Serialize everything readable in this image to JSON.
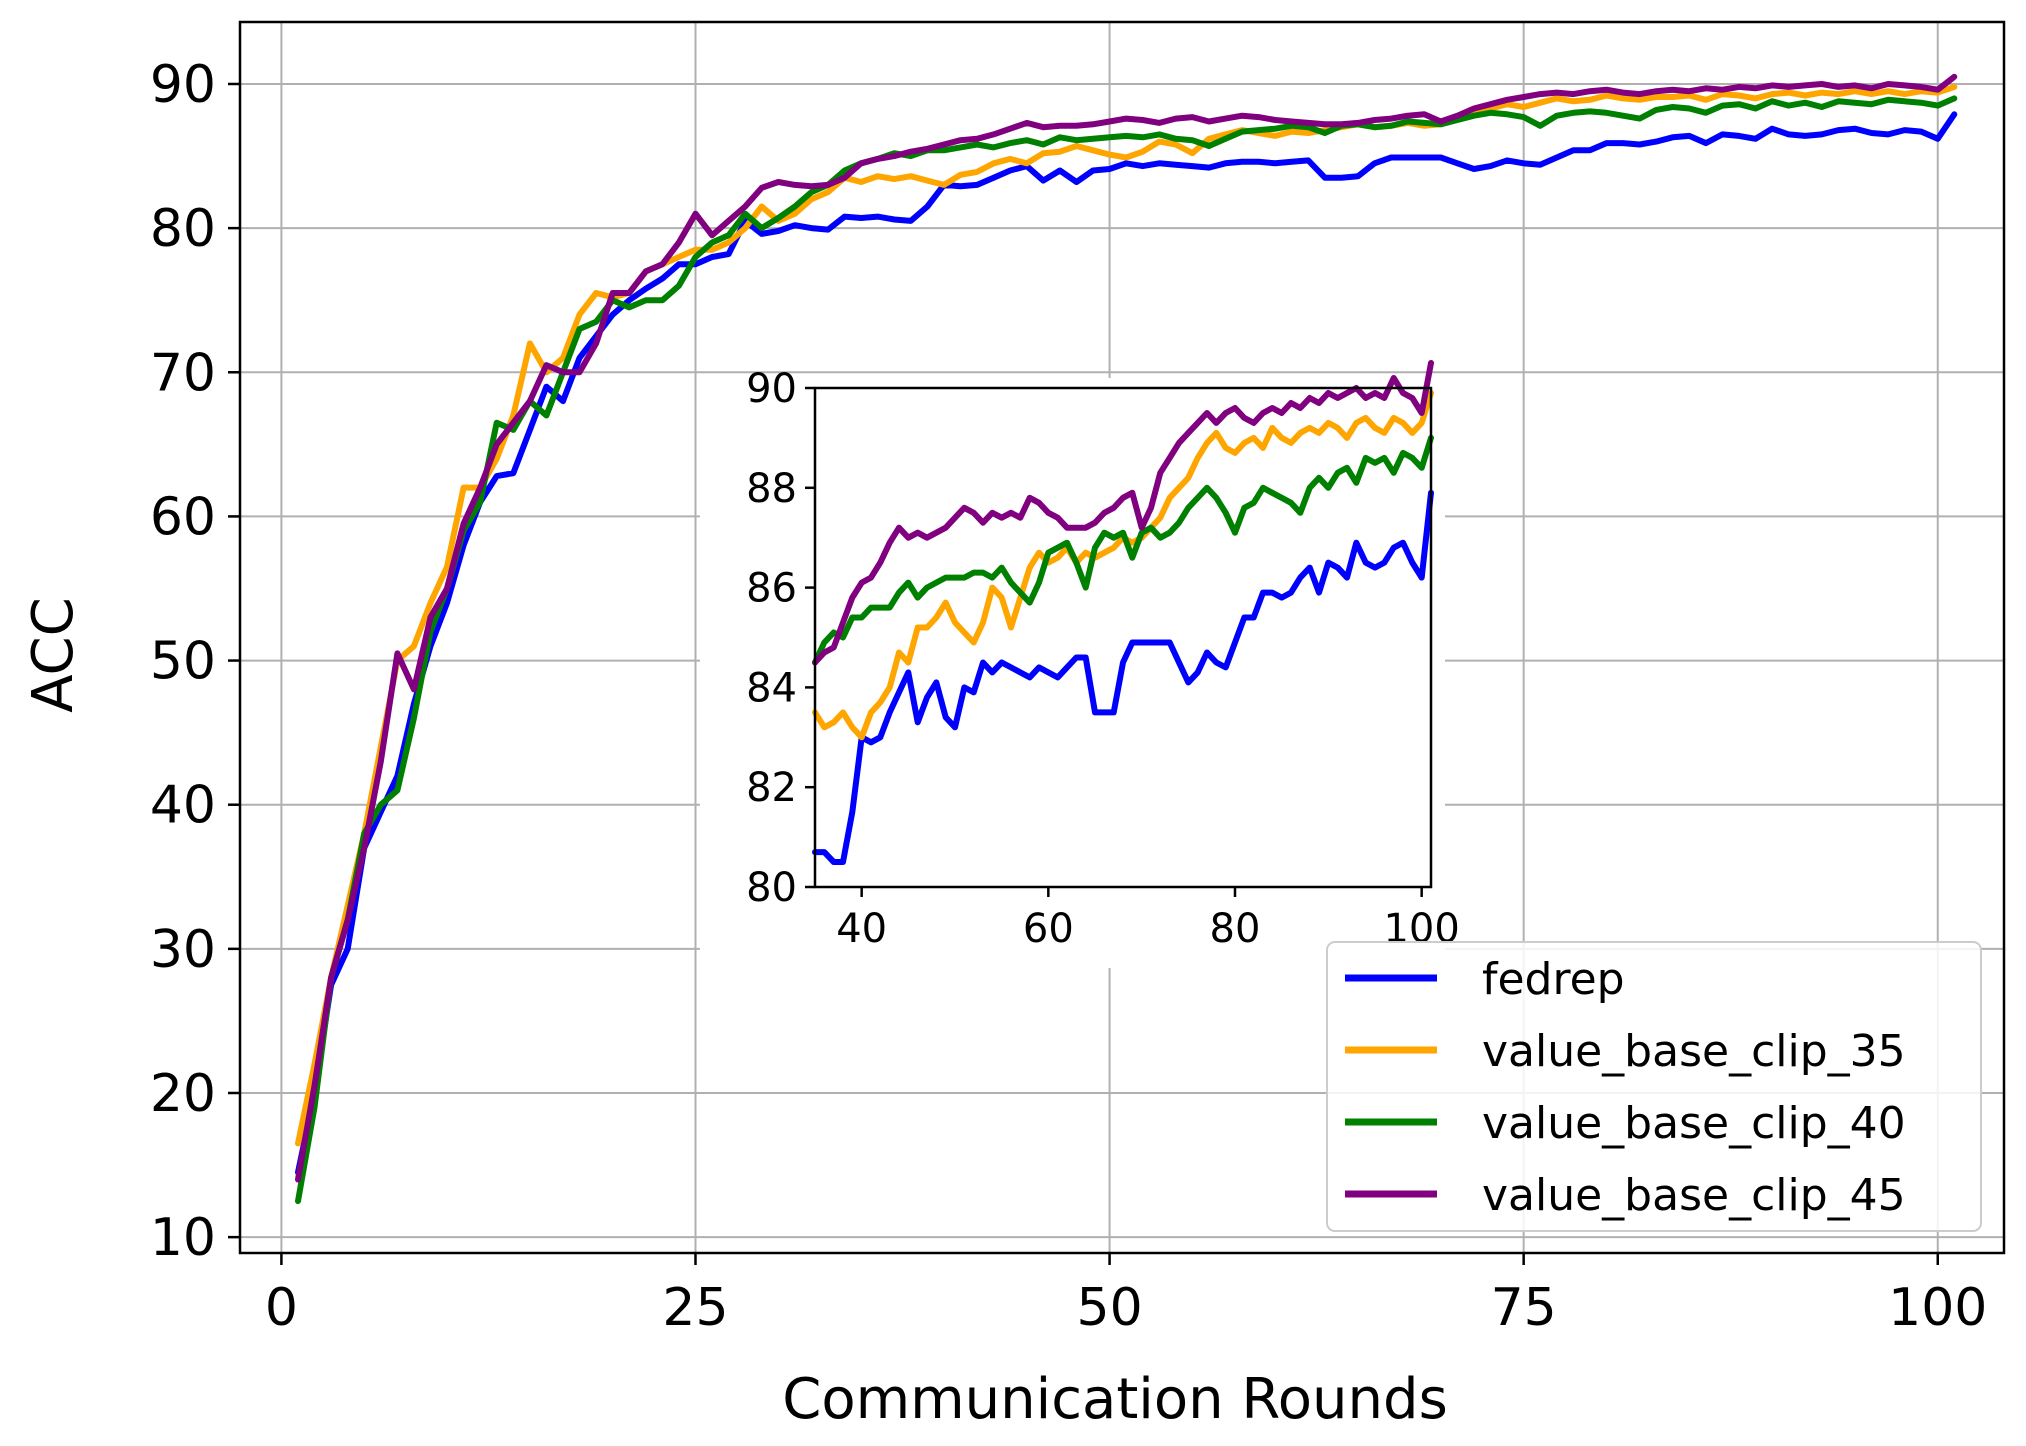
{
  "chart_data": [
    {
      "type": "line",
      "xlabel": "Communication Rounds",
      "ylabel": "ACC",
      "xlim": [
        -2.5,
        104
      ],
      "ylim": [
        8.9,
        94.3
      ],
      "x_ticks": [
        0,
        25,
        50,
        75,
        100
      ],
      "y_ticks": [
        10,
        20,
        30,
        40,
        50,
        60,
        70,
        80,
        90
      ],
      "grid": true,
      "legend_position": "lower-right",
      "x": [
        1,
        2,
        3,
        4,
        5,
        6,
        7,
        8,
        9,
        10,
        11,
        12,
        13,
        14,
        15,
        16,
        17,
        18,
        19,
        20,
        21,
        22,
        23,
        24,
        25,
        26,
        27,
        28,
        29,
        30,
        31,
        32,
        33,
        34,
        35,
        36,
        37,
        38,
        39,
        40,
        41,
        42,
        43,
        44,
        45,
        46,
        47,
        48,
        49,
        50,
        51,
        52,
        53,
        54,
        55,
        56,
        57,
        58,
        59,
        60,
        61,
        62,
        63,
        64,
        65,
        66,
        67,
        68,
        69,
        70,
        71,
        72,
        73,
        74,
        75,
        76,
        77,
        78,
        79,
        80,
        81,
        82,
        83,
        84,
        85,
        86,
        87,
        88,
        89,
        90,
        91,
        92,
        93,
        94,
        95,
        96,
        97,
        98,
        99,
        100,
        101
      ],
      "series": [
        {
          "name": "fedrep",
          "color": "#0000ff",
          "values": [
            14.5,
            20.0,
            27.5,
            30.0,
            37.0,
            39.5,
            42.0,
            47.0,
            51.0,
            54.0,
            58.0,
            61.0,
            62.8,
            63.0,
            66.0,
            69.0,
            68.0,
            71.0,
            72.5,
            74.0,
            75.0,
            75.8,
            76.5,
            77.5,
            77.5,
            78.0,
            78.2,
            80.5,
            79.6,
            79.8,
            80.2,
            80.0,
            79.9,
            80.8,
            80.7,
            80.8,
            80.6,
            80.5,
            81.5,
            83.0,
            82.9,
            83.0,
            83.5,
            84.0,
            84.3,
            83.3,
            84.0,
            83.2,
            84.0,
            84.1,
            84.5,
            84.3,
            84.5,
            84.4,
            84.3,
            84.2,
            84.5,
            84.6,
            84.6,
            84.5,
            84.6,
            84.7,
            83.5,
            83.5,
            83.6,
            84.5,
            84.9,
            84.9,
            84.9,
            84.9,
            84.5,
            84.1,
            84.3,
            84.7,
            84.5,
            84.4,
            84.9,
            85.4,
            85.4,
            85.9,
            85.9,
            85.8,
            86.0,
            86.3,
            86.4,
            85.9,
            86.5,
            86.4,
            86.2,
            86.9,
            86.5,
            86.4,
            86.5,
            86.8,
            86.9,
            86.6,
            86.5,
            86.8,
            86.7,
            86.2,
            87.9
          ]
        },
        {
          "name": "value_base_clip_35",
          "color": "#ffa500",
          "values": [
            16.5,
            22.0,
            28.0,
            33.0,
            38.0,
            44.0,
            50.0,
            51.0,
            54.0,
            56.5,
            62.0,
            62.0,
            64.0,
            67.0,
            72.0,
            70.0,
            71.0,
            74.0,
            75.5,
            75.2,
            75.5,
            77.0,
            77.5,
            78.0,
            78.5,
            78.5,
            79.0,
            80.0,
            81.5,
            80.5,
            81.0,
            82.0,
            82.5,
            83.5,
            83.2,
            83.6,
            83.4,
            83.6,
            83.3,
            83.0,
            83.7,
            83.9,
            84.5,
            84.8,
            84.5,
            85.2,
            85.3,
            85.7,
            85.4,
            85.1,
            84.9,
            85.3,
            86.0,
            85.8,
            85.2,
            86.2,
            86.5,
            86.8,
            86.6,
            86.4,
            86.7,
            86.6,
            86.8,
            87.0,
            87.2,
            87.0,
            87.1,
            87.3,
            87.1,
            87.2,
            87.6,
            88.0,
            88.3,
            88.6,
            88.4,
            88.7,
            89.0,
            88.8,
            88.9,
            89.2,
            89.0,
            88.9,
            89.1,
            89.1,
            89.2,
            88.9,
            89.3,
            89.2,
            89.0,
            89.3,
            89.4,
            89.2,
            89.4,
            89.3,
            89.5,
            89.3,
            89.5,
            89.3,
            89.5,
            89.4,
            89.8
          ]
        },
        {
          "name": "value_base_clip_40",
          "color": "#008000",
          "values": [
            12.5,
            19.0,
            28.0,
            32.0,
            38.0,
            40.0,
            41.0,
            46.0,
            52.0,
            55.0,
            59.0,
            61.0,
            66.5,
            66.0,
            68.0,
            67.0,
            70.0,
            73.0,
            73.5,
            75.0,
            74.5,
            75.0,
            75.0,
            76.0,
            78.0,
            79.0,
            79.5,
            81.0,
            80.0,
            80.7,
            81.5,
            82.5,
            83.0,
            84.0,
            84.5,
            84.8,
            85.2,
            85.0,
            85.4,
            85.4,
            85.6,
            85.8,
            85.6,
            85.9,
            86.1,
            85.8,
            86.3,
            86.1,
            86.2,
            86.3,
            86.4,
            86.3,
            86.5,
            86.2,
            86.1,
            85.7,
            86.2,
            86.7,
            86.8,
            86.9,
            87.1,
            87.0,
            86.6,
            87.1,
            87.2,
            87.0,
            87.1,
            87.4,
            87.3,
            87.2,
            87.5,
            87.8,
            88.0,
            87.9,
            87.7,
            87.1,
            87.8,
            88.0,
            88.1,
            88.0,
            87.8,
            87.6,
            88.2,
            88.4,
            88.3,
            88.0,
            88.5,
            88.6,
            88.3,
            88.8,
            88.5,
            88.7,
            88.4,
            88.8,
            88.7,
            88.6,
            88.9,
            88.8,
            88.7,
            88.5,
            89.0
          ]
        },
        {
          "name": "value_base_clip_45",
          "color": "#800080",
          "values": [
            14.0,
            20.5,
            28.0,
            32.0,
            37.0,
            43.0,
            50.5,
            48.0,
            53.0,
            55.0,
            59.5,
            62.0,
            65.0,
            66.5,
            68.0,
            70.5,
            70.0,
            70.0,
            72.0,
            75.5,
            75.5,
            77.0,
            77.5,
            79.0,
            81.0,
            79.5,
            80.5,
            81.5,
            82.8,
            83.2,
            83.0,
            82.9,
            83.0,
            83.5,
            84.5,
            84.8,
            85.0,
            85.3,
            85.5,
            85.8,
            86.1,
            86.2,
            86.5,
            86.9,
            87.3,
            87.0,
            87.1,
            87.1,
            87.2,
            87.4,
            87.6,
            87.5,
            87.3,
            87.6,
            87.7,
            87.4,
            87.6,
            87.8,
            87.7,
            87.5,
            87.4,
            87.3,
            87.2,
            87.2,
            87.3,
            87.5,
            87.6,
            87.8,
            87.9,
            87.4,
            87.8,
            88.3,
            88.6,
            88.9,
            89.1,
            89.3,
            89.4,
            89.3,
            89.5,
            89.6,
            89.4,
            89.3,
            89.5,
            89.6,
            89.5,
            89.7,
            89.6,
            89.8,
            89.7,
            89.9,
            89.8,
            89.9,
            90.0,
            89.8,
            89.9,
            89.7,
            90.0,
            89.9,
            89.8,
            89.6,
            90.5
          ]
        }
      ]
    },
    {
      "type": "line",
      "inset_of": "main",
      "xlim": [
        35,
        101
      ],
      "ylim": [
        80,
        90
      ],
      "x_ticks": [
        40,
        60,
        80,
        100
      ],
      "y_ticks": [
        80,
        82,
        84,
        86,
        88,
        90
      ],
      "grid": false,
      "x": [
        35,
        36,
        37,
        38,
        39,
        40,
        41,
        42,
        43,
        44,
        45,
        46,
        47,
        48,
        49,
        50,
        51,
        52,
        53,
        54,
        55,
        56,
        57,
        58,
        59,
        60,
        61,
        62,
        63,
        64,
        65,
        66,
        67,
        68,
        69,
        70,
        71,
        72,
        73,
        74,
        75,
        76,
        77,
        78,
        79,
        80,
        81,
        82,
        83,
        84,
        85,
        86,
        87,
        88,
        89,
        90,
        91,
        92,
        93,
        94,
        95,
        96,
        97,
        98,
        99,
        100,
        101
      ],
      "series": [
        {
          "name": "fedrep",
          "color": "#0000ff",
          "values": [
            80.7,
            80.7,
            80.5,
            80.5,
            81.5,
            83.0,
            82.9,
            83.0,
            83.5,
            83.9,
            84.3,
            83.3,
            83.8,
            84.1,
            83.4,
            83.2,
            84.0,
            83.9,
            84.5,
            84.3,
            84.5,
            84.4,
            84.3,
            84.2,
            84.4,
            84.3,
            84.2,
            84.4,
            84.6,
            84.6,
            83.5,
            83.5,
            83.5,
            84.5,
            84.9,
            84.9,
            84.9,
            84.9,
            84.9,
            84.5,
            84.1,
            84.3,
            84.7,
            84.5,
            84.4,
            84.9,
            85.4,
            85.4,
            85.9,
            85.9,
            85.8,
            85.9,
            86.2,
            86.4,
            85.9,
            86.5,
            86.4,
            86.2,
            86.9,
            86.5,
            86.4,
            86.5,
            86.8,
            86.9,
            86.5,
            86.2,
            87.9
          ]
        },
        {
          "name": "value_base_clip_35",
          "color": "#ffa500",
          "values": [
            83.5,
            83.2,
            83.3,
            83.5,
            83.2,
            83.0,
            83.5,
            83.7,
            84.0,
            84.7,
            84.5,
            85.2,
            85.2,
            85.4,
            85.7,
            85.3,
            85.1,
            84.9,
            85.3,
            86.0,
            85.8,
            85.2,
            85.8,
            86.4,
            86.7,
            86.5,
            86.6,
            86.8,
            86.5,
            86.7,
            86.6,
            86.7,
            86.8,
            87.0,
            86.9,
            87.0,
            87.2,
            87.4,
            87.8,
            88.0,
            88.2,
            88.6,
            88.9,
            89.1,
            88.8,
            88.7,
            88.9,
            89.0,
            88.8,
            89.2,
            89.0,
            88.9,
            89.1,
            89.2,
            89.1,
            89.3,
            89.2,
            89.0,
            89.3,
            89.4,
            89.2,
            89.1,
            89.4,
            89.3,
            89.1,
            89.3,
            89.9
          ]
        },
        {
          "name": "value_base_clip_40",
          "color": "#008000",
          "values": [
            84.5,
            84.9,
            85.1,
            85.0,
            85.4,
            85.4,
            85.6,
            85.6,
            85.6,
            85.9,
            86.1,
            85.8,
            86.0,
            86.1,
            86.2,
            86.2,
            86.2,
            86.3,
            86.3,
            86.2,
            86.4,
            86.1,
            85.9,
            85.7,
            86.1,
            86.7,
            86.8,
            86.9,
            86.5,
            86.0,
            86.8,
            87.1,
            87.0,
            87.1,
            86.6,
            87.1,
            87.2,
            87.0,
            87.1,
            87.3,
            87.6,
            87.8,
            88.0,
            87.8,
            87.5,
            87.1,
            87.6,
            87.7,
            88.0,
            87.9,
            87.8,
            87.7,
            87.5,
            88.0,
            88.2,
            88.0,
            88.3,
            88.4,
            88.1,
            88.6,
            88.5,
            88.6,
            88.3,
            88.7,
            88.6,
            88.4,
            89.0
          ]
        },
        {
          "name": "value_base_clip_45",
          "color": "#800080",
          "values": [
            84.5,
            84.7,
            84.8,
            85.3,
            85.8,
            86.1,
            86.2,
            86.5,
            86.9,
            87.2,
            87.0,
            87.1,
            87.0,
            87.1,
            87.2,
            87.4,
            87.6,
            87.5,
            87.3,
            87.5,
            87.4,
            87.5,
            87.4,
            87.8,
            87.7,
            87.5,
            87.4,
            87.2,
            87.2,
            87.2,
            87.3,
            87.5,
            87.6,
            87.8,
            87.9,
            87.2,
            87.6,
            88.3,
            88.6,
            88.9,
            89.1,
            89.3,
            89.5,
            89.3,
            89.5,
            89.6,
            89.4,
            89.3,
            89.5,
            89.6,
            89.5,
            89.7,
            89.6,
            89.8,
            89.7,
            89.9,
            89.8,
            89.9,
            90.0,
            89.8,
            89.9,
            89.8,
            90.2,
            89.9,
            89.8,
            89.5,
            90.5
          ]
        }
      ]
    }
  ]
}
